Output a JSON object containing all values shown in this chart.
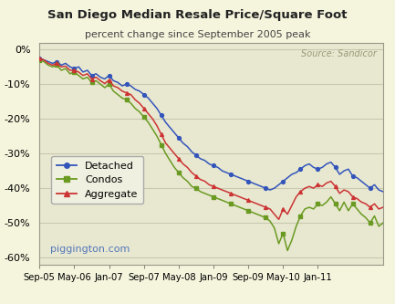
{
  "title": "San Diego Median Resale Price/Square Foot",
  "subtitle": "percent change since September 2005 peak",
  "source_text": "Source: Sandicor",
  "watermark": "piggington.com",
  "background_color": "#f5f4dc",
  "plot_bg_color": "#e8e8d0",
  "grid_color": "#c8c8b0",
  "ylim": [
    -62,
    2
  ],
  "yticks": [
    0,
    -10,
    -20,
    -30,
    -40,
    -50,
    -60
  ],
  "ytick_labels": [
    "0%",
    "-10%",
    "-20%",
    "-30%",
    "-40%",
    "-50%",
    "-60%"
  ],
  "xtick_labels": [
    "Sep-05",
    "May-06",
    "Jan-07",
    "Sep-07",
    "May-08",
    "Jan-09",
    "Sep-09",
    "May-10",
    "Jan-11"
  ],
  "colors": {
    "detached": "#3355bb",
    "condos": "#6a9a22",
    "aggregate": "#cc3333"
  },
  "legend_labels": [
    "Detached",
    "Condos",
    "Aggregate"
  ],
  "detached": [
    -2.5,
    -3.0,
    -3.5,
    -4.0,
    -3.5,
    -4.5,
    -4.0,
    -5.0,
    -5.5,
    -5.0,
    -6.5,
    -6.0,
    -7.5,
    -7.0,
    -8.0,
    -8.5,
    -7.5,
    -9.0,
    -9.5,
    -10.5,
    -10.0,
    -10.5,
    -11.5,
    -12.0,
    -13.0,
    -14.0,
    -15.5,
    -17.0,
    -19.0,
    -21.0,
    -22.5,
    -24.0,
    -25.5,
    -27.0,
    -28.0,
    -29.5,
    -30.5,
    -31.5,
    -32.0,
    -33.0,
    -33.5,
    -34.0,
    -35.0,
    -35.5,
    -36.0,
    -36.5,
    -37.0,
    -37.5,
    -38.0,
    -38.5,
    -39.0,
    -39.5,
    -40.0,
    -40.5,
    -40.0,
    -39.0,
    -38.0,
    -37.0,
    -36.0,
    -35.5,
    -34.5,
    -33.5,
    -33.0,
    -34.0,
    -34.5,
    -34.0,
    -33.0,
    -32.5,
    -34.0,
    -36.0,
    -35.0,
    -34.5,
    -36.5,
    -37.0,
    -38.0,
    -39.0,
    -40.0,
    -39.0,
    -40.5,
    -41.0
  ],
  "condos": [
    -3.0,
    -3.5,
    -4.5,
    -5.0,
    -4.5,
    -6.0,
    -5.5,
    -7.0,
    -6.5,
    -7.5,
    -8.5,
    -8.0,
    -9.5,
    -9.0,
    -10.0,
    -11.0,
    -10.0,
    -12.0,
    -13.0,
    -14.0,
    -14.5,
    -15.5,
    -17.0,
    -18.0,
    -19.5,
    -21.0,
    -23.0,
    -25.0,
    -27.5,
    -30.0,
    -32.0,
    -34.0,
    -35.5,
    -37.0,
    -38.0,
    -39.5,
    -40.0,
    -41.0,
    -41.5,
    -42.0,
    -42.5,
    -43.0,
    -43.5,
    -44.0,
    -44.5,
    -45.0,
    -45.5,
    -46.0,
    -46.5,
    -47.0,
    -47.5,
    -48.0,
    -48.5,
    -49.5,
    -51.5,
    -56.0,
    -53.0,
    -58.0,
    -55.0,
    -51.0,
    -48.0,
    -46.0,
    -45.5,
    -46.0,
    -44.5,
    -45.0,
    -44.0,
    -42.5,
    -44.5,
    -46.5,
    -44.0,
    -46.5,
    -44.5,
    -46.0,
    -47.5,
    -48.5,
    -50.0,
    -48.0,
    -51.0,
    -50.0
  ],
  "aggregate": [
    -2.5,
    -3.0,
    -4.0,
    -4.5,
    -4.0,
    -5.0,
    -4.8,
    -6.0,
    -6.0,
    -6.5,
    -7.5,
    -7.0,
    -8.5,
    -8.0,
    -9.0,
    -9.8,
    -8.8,
    -10.5,
    -11.0,
    -12.0,
    -12.5,
    -13.0,
    -14.5,
    -15.5,
    -17.0,
    -18.5,
    -20.0,
    -22.0,
    -24.5,
    -27.0,
    -28.5,
    -30.0,
    -31.5,
    -33.0,
    -34.0,
    -35.5,
    -36.5,
    -37.5,
    -38.0,
    -39.0,
    -39.5,
    -40.0,
    -40.5,
    -41.0,
    -41.5,
    -42.0,
    -42.5,
    -43.0,
    -43.5,
    -44.0,
    -44.5,
    -45.0,
    -45.5,
    -46.0,
    -47.5,
    -49.0,
    -46.0,
    -47.5,
    -45.0,
    -42.5,
    -41.0,
    -40.0,
    -39.5,
    -40.0,
    -39.0,
    -39.5,
    -38.5,
    -38.0,
    -39.5,
    -41.5,
    -40.5,
    -41.0,
    -42.5,
    -43.0,
    -44.0,
    -44.5,
    -45.5,
    -44.5,
    -46.0,
    -45.5
  ],
  "n_points": 80
}
